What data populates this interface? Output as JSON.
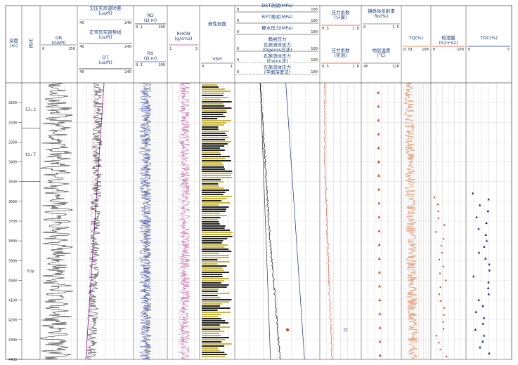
{
  "chart_data": {
    "type": "line",
    "columns": [
      {
        "id": "depth",
        "label": "深度\n(m)"
      },
      {
        "id": "strat",
        "label": "分\n层"
      },
      {
        "id": "gr",
        "label": "GR\n(GAPI)",
        "scale": [
          "0",
          "150"
        ]
      },
      {
        "id": "sonic",
        "labels": [
          "欠压实声波时差\n(us/ft)",
          "正常压实趋势线\n(us/ft)",
          "DT\n(us/ft)"
        ],
        "scales": [
          [
            "40",
            "240"
          ],
          [
            "40",
            "240"
          ],
          [
            "40",
            "240"
          ]
        ]
      },
      {
        "id": "res",
        "labels": [
          "RD\n(Ω·m)",
          "RS\n(Ω·m)"
        ],
        "scales": [
          [
            "0.1",
            "100"
          ],
          [
            "0.1",
            "100"
          ]
        ]
      },
      {
        "id": "rhob",
        "label": "RHOB\n(g/cm3)",
        "scale": [
          "1",
          "3"
        ]
      },
      {
        "id": "lith",
        "labels": [
          "岩性剖面",
          "VSH"
        ],
        "scale": [
          "0",
          "1"
        ]
      },
      {
        "id": "press",
        "labels": [
          "DST测试(MPa)",
          "RFT测试(MPa)",
          "静水压力(MPa)",
          "静岩压力",
          "孔隙流体压力\n(Dgenss方法)",
          "孔隙流体压力\n(Eaton法)",
          "孔隙流体压力\n(平衡深度法)"
        ],
        "scale": [
          "0",
          "100"
        ]
      },
      {
        "id": "pcoef",
        "labels": [
          "压力系数\n(计算)",
          "压力系数\n(实测)"
        ],
        "scales": [
          [
            "0.5",
            "1.8"
          ],
          [
            "0.5",
            "1.8"
          ]
        ]
      },
      {
        "id": "ro",
        "labels": [
          "镜质体反射率\nRo(%)",
          "地层温度\n(℃)"
        ],
        "scales": [
          [
            "0",
            "1.5"
          ],
          [
            "40",
            "120"
          ]
        ]
      },
      {
        "id": "tq",
        "label": "TQ(%)",
        "scale": [
          "0.01",
          "100"
        ]
      },
      {
        "id": "s1s2",
        "label": "热潜量\n(S1+S2)",
        "scale": [
          "0",
          "100"
        ]
      },
      {
        "id": "toc",
        "label": "TOC(%)",
        "scale": [
          "0",
          "5"
        ]
      }
    ],
    "depth_axis": {
      "range": [
        3000,
        4400
      ],
      "ticks": [
        "3100",
        "3200",
        "3300",
        "3400",
        "3500",
        "3600",
        "3700",
        "3800",
        "3900",
        "4000",
        "4100",
        "4200",
        "4300",
        "4400"
      ]
    },
    "strat_labels": [
      {
        "label": "E3₁上",
        "depth": 3140
      },
      {
        "label": "E3₁下",
        "depth": 3370
      },
      {
        "label": "E2p",
        "depth": 3960
      }
    ]
  },
  "colors": {
    "black": "#111",
    "blue": "#3b4fc8",
    "red": "#e0442b",
    "purple": "#8a2aa3",
    "olive": "#c8b640",
    "navy": "#1a2f8a",
    "pink": "#c04490",
    "orange": "#e06a2a"
  }
}
